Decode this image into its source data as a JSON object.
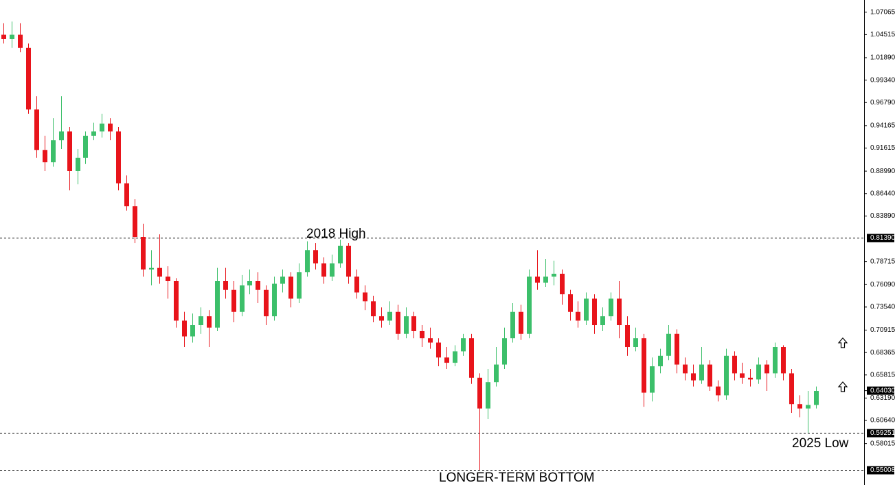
{
  "chart_data": {
    "type": "candlestick",
    "up_color": "#3cbf6a",
    "down_color": "#e8141b",
    "ylim": [
      0.533,
      1.0845
    ],
    "yticks": [
      1.07065,
      1.04515,
      {
        "value": 1.0189,
        "label": "1.01890"
      },
      {
        "value": 0.9934,
        "label": "0.99340"
      },
      {
        "value": 0.9679,
        "label": "0.96790"
      },
      0.94165,
      0.91615,
      {
        "value": 0.8899,
        "label": "0.88990"
      },
      {
        "value": 0.8644,
        "label": "0.86440"
      },
      {
        "value": 0.8389,
        "label": "0.83890"
      },
      0.78715,
      {
        "value": 0.7609,
        "label": "0.76090"
      },
      {
        "value": 0.7354,
        "label": "0.73540"
      },
      0.70915,
      0.68365,
      0.65815,
      {
        "value": 0.6319,
        "label": "0.63190"
      },
      {
        "value": 0.6064,
        "label": "0.60640"
      },
      0.58015
    ],
    "levels": [
      {
        "value": 0.8139,
        "label": "0.81390"
      },
      {
        "value": 0.59251,
        "label": "0.59251"
      },
      {
        "value": 0.55008,
        "label": "0.55008"
      }
    ],
    "current_price": {
      "value": 0.6403,
      "label": "0.64030"
    },
    "annotations": [
      "2018 High",
      "2025 Low",
      "LONGER-TERM BOTTOM"
    ],
    "open": [
      1.045,
      1.04,
      1.045,
      1.03,
      0.96,
      0.914,
      0.9,
      0.925,
      0.935,
      0.89,
      0.905,
      0.93,
      0.935,
      0.944,
      0.935,
      0.876,
      0.85,
      0.815,
      0.778,
      0.78,
      0.77,
      0.765,
      0.72,
      0.702,
      0.715,
      0.725,
      0.712,
      0.765,
      0.755,
      0.73,
      0.76,
      0.765,
      0.755,
      0.725,
      0.762,
      0.77,
      0.745,
      0.775,
      0.8,
      0.785,
      0.77,
      0.785,
      0.805,
      0.77,
      0.752,
      0.742,
      0.725,
      0.72,
      0.73,
      0.705,
      0.725,
      0.708,
      0.7,
      0.695,
      0.678,
      0.672,
      0.685,
      0.7,
      0.655,
      0.62,
      0.65,
      0.67,
      0.7,
      0.73,
      0.705,
      0.77,
      0.763,
      0.77,
      0.773,
      0.75,
      0.73,
      0.72,
      0.745,
      0.715,
      0.725,
      0.745,
      0.715,
      0.69,
      0.7,
      0.638,
      0.668,
      0.68,
      0.705,
      0.67,
      0.66,
      0.652,
      0.67,
      0.645,
      0.635,
      0.68,
      0.66,
      0.655,
      0.653,
      0.67,
      0.66,
      0.69,
      0.66,
      0.625,
      0.62,
      0.624
    ],
    "high": [
      1.058,
      1.06,
      1.058,
      1.035,
      0.975,
      0.93,
      0.95,
      0.975,
      0.94,
      0.915,
      0.935,
      0.945,
      0.955,
      0.95,
      0.94,
      0.885,
      0.858,
      0.83,
      0.8,
      0.818,
      0.782,
      0.768,
      0.73,
      0.728,
      0.735,
      0.732,
      0.78,
      0.78,
      0.765,
      0.772,
      0.778,
      0.775,
      0.76,
      0.77,
      0.778,
      0.775,
      0.785,
      0.81,
      0.808,
      0.792,
      0.795,
      0.812,
      0.808,
      0.778,
      0.76,
      0.748,
      0.735,
      0.742,
      0.738,
      0.735,
      0.73,
      0.715,
      0.712,
      0.7,
      0.69,
      0.692,
      0.705,
      0.705,
      0.66,
      0.665,
      0.69,
      0.712,
      0.74,
      0.738,
      0.778,
      0.8,
      0.79,
      0.788,
      0.778,
      0.755,
      0.742,
      0.752,
      0.75,
      0.735,
      0.752,
      0.765,
      0.725,
      0.712,
      0.705,
      0.678,
      0.688,
      0.715,
      0.71,
      0.678,
      0.67,
      0.69,
      0.675,
      0.652,
      0.688,
      0.685,
      0.672,
      0.665,
      0.678,
      0.675,
      0.695,
      0.692,
      0.665,
      0.635,
      0.64,
      0.645
    ],
    "low": [
      1.035,
      1.03,
      1.025,
      0.955,
      0.905,
      0.89,
      0.895,
      0.915,
      0.868,
      0.875,
      0.898,
      0.925,
      0.928,
      0.925,
      0.868,
      0.845,
      0.808,
      0.77,
      0.76,
      0.762,
      0.745,
      0.712,
      0.69,
      0.695,
      0.705,
      0.69,
      0.708,
      0.745,
      0.718,
      0.725,
      0.75,
      0.74,
      0.715,
      0.72,
      0.752,
      0.735,
      0.74,
      0.77,
      0.778,
      0.762,
      0.765,
      0.78,
      0.762,
      0.745,
      0.732,
      0.718,
      0.712,
      0.715,
      0.698,
      0.7,
      0.7,
      0.69,
      0.688,
      0.668,
      0.665,
      0.668,
      0.68,
      0.648,
      0.55008,
      0.608,
      0.645,
      0.665,
      0.695,
      0.698,
      0.7,
      0.755,
      0.758,
      0.76,
      0.738,
      0.72,
      0.712,
      0.715,
      0.705,
      0.708,
      0.72,
      0.7,
      0.68,
      0.685,
      0.622,
      0.628,
      0.66,
      0.675,
      0.66,
      0.652,
      0.645,
      0.648,
      0.64,
      0.628,
      0.63,
      0.652,
      0.648,
      0.645,
      0.648,
      0.64,
      0.655,
      0.652,
      0.615,
      0.61,
      0.59251,
      0.62
    ],
    "close": [
      1.04,
      1.045,
      1.03,
      0.96,
      0.914,
      0.9,
      0.925,
      0.935,
      0.89,
      0.905,
      0.93,
      0.935,
      0.944,
      0.935,
      0.876,
      0.85,
      0.815,
      0.778,
      0.78,
      0.77,
      0.765,
      0.72,
      0.702,
      0.715,
      0.725,
      0.712,
      0.765,
      0.755,
      0.73,
      0.76,
      0.765,
      0.755,
      0.725,
      0.762,
      0.77,
      0.745,
      0.775,
      0.8,
      0.785,
      0.77,
      0.785,
      0.805,
      0.77,
      0.752,
      0.742,
      0.725,
      0.72,
      0.73,
      0.705,
      0.725,
      0.708,
      0.7,
      0.695,
      0.678,
      0.672,
      0.685,
      0.7,
      0.655,
      0.62,
      0.65,
      0.67,
      0.7,
      0.73,
      0.705,
      0.77,
      0.763,
      0.77,
      0.773,
      0.75,
      0.73,
      0.72,
      0.745,
      0.715,
      0.725,
      0.745,
      0.715,
      0.69,
      0.7,
      0.638,
      0.668,
      0.68,
      0.705,
      0.67,
      0.66,
      0.652,
      0.67,
      0.645,
      0.635,
      0.68,
      0.66,
      0.655,
      0.653,
      0.67,
      0.66,
      0.69,
      0.66,
      0.625,
      0.62,
      0.624,
      0.64
    ]
  }
}
